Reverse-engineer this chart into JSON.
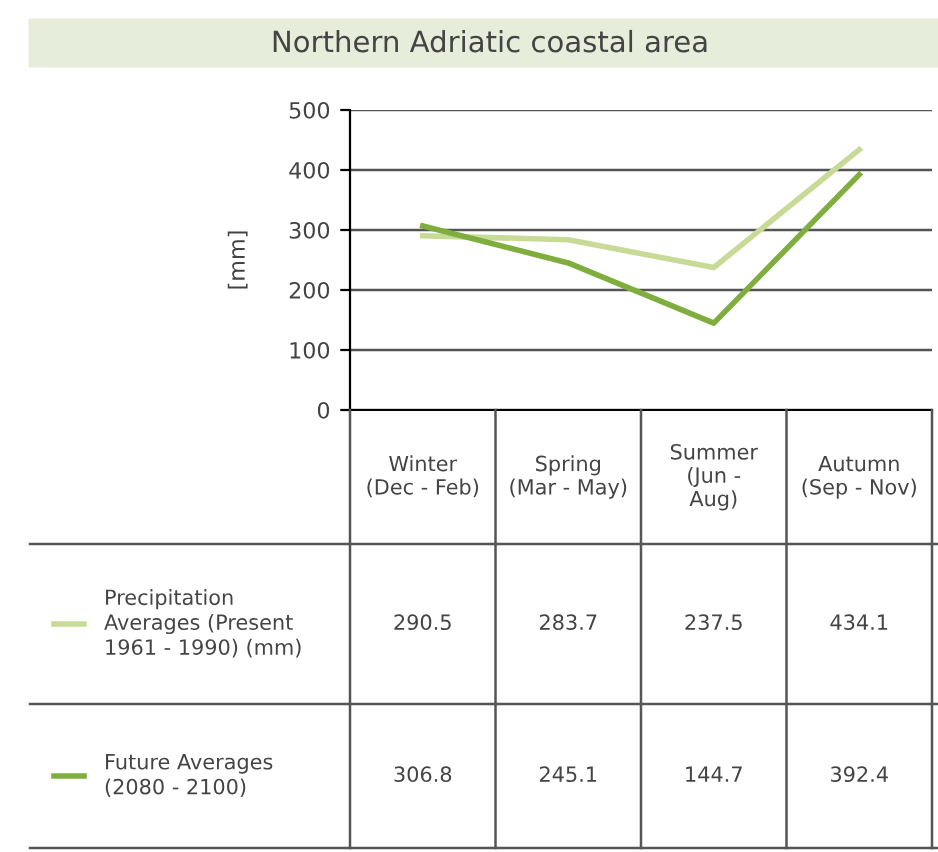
{
  "chart_data": {
    "type": "line",
    "title": "Northern Adriatic coastal area",
    "ylabel": "[mm]",
    "categories": [
      "Winter\n(Dec - Feb)",
      "Spring\n(Mar - May)",
      "Summer\n(Jun -\nAug)",
      "Autumn\n(Sep - Nov)"
    ],
    "series": [
      {
        "name": "Precipitation\nAverages (Present\n1961 - 1990) (mm)",
        "color": "#c8db96",
        "values": [
          290.5,
          283.7,
          237.5,
          434.1
        ]
      },
      {
        "name": "Future Averages\n(2080 - 2100)",
        "color": "#7fae3e",
        "values": [
          306.8,
          245.1,
          144.7,
          392.4
        ]
      }
    ],
    "ylim": [
      0,
      500
    ],
    "yticks": [
      0,
      100,
      200,
      300,
      400,
      500
    ],
    "grid": "y",
    "data_labels": true,
    "legend": "bottom left",
    "marker": "none",
    "line_style": "solid"
  }
}
